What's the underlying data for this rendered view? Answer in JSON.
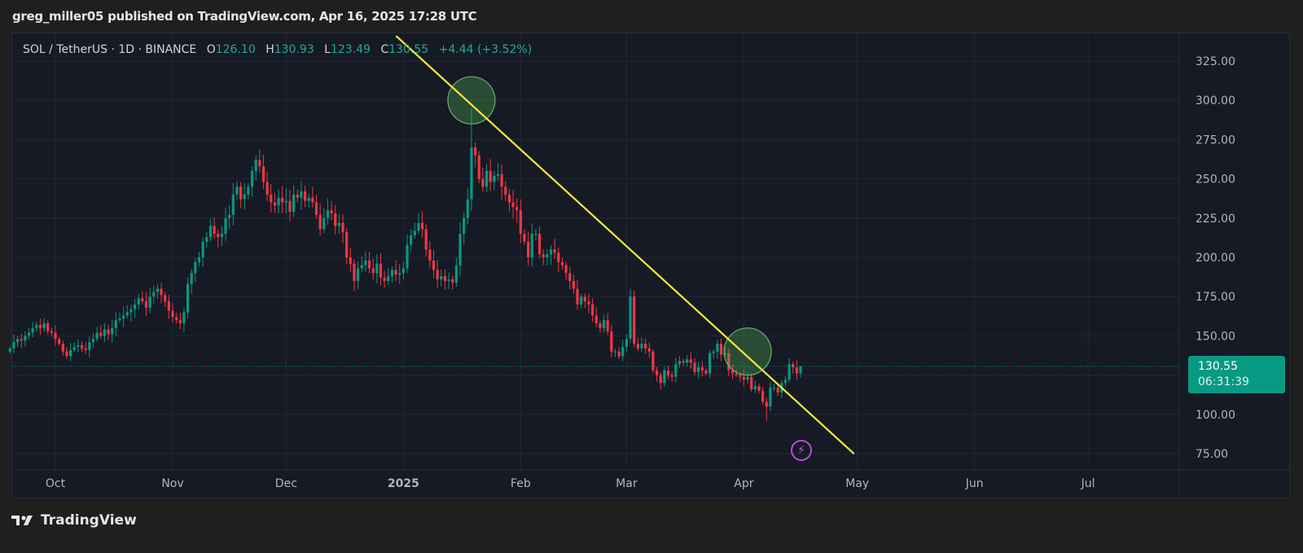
{
  "header": {
    "published": "greg_miller05 published on TradingView.com, Apr 16, 2025 17:28 UTC"
  },
  "legend": {
    "symbol": "SOL / TetherUS · 1D · BINANCE",
    "o_label": "O",
    "o": "126.10",
    "h_label": "H",
    "h": "130.93",
    "l_label": "L",
    "l": "123.49",
    "c_label": "C",
    "c": "130.55",
    "change": "+4.44 (+3.52%)"
  },
  "price_tag": {
    "price": "130.55",
    "countdown": "06:31:39"
  },
  "footer": {
    "brand": "TradingView"
  },
  "colors": {
    "up": "#089981",
    "down": "#f23645",
    "trendline": "#f5e93a",
    "highlight": "#4caf50",
    "background": "#161a25"
  },
  "icons": {
    "alert": "lightning-bolt-icon",
    "logo": "tradingview-logo-icon"
  },
  "chart_data": {
    "type": "candlestick",
    "title": "SOL / TetherUS · 1D · BINANCE",
    "start_date": "2024-09-19",
    "interval": "1D",
    "closes": [
      142,
      146,
      148,
      147,
      150,
      152,
      155,
      157,
      155,
      158,
      153,
      152,
      148,
      145,
      140,
      137,
      141,
      143,
      144,
      142,
      141,
      146,
      148,
      152,
      150,
      154,
      151,
      155,
      160,
      161,
      163,
      165,
      167,
      170,
      174,
      172,
      168,
      175,
      178,
      180,
      176,
      172,
      166,
      162,
      160,
      158,
      165,
      183,
      190,
      197,
      200,
      210,
      213,
      220,
      215,
      213,
      215,
      225,
      227,
      240,
      245,
      237,
      240,
      245,
      255,
      262,
      258,
      248,
      240,
      235,
      233,
      238,
      235,
      236,
      229,
      240,
      238,
      242,
      236,
      238,
      235,
      227,
      218,
      225,
      230,
      228,
      220,
      222,
      216,
      200,
      196,
      185,
      193,
      195,
      198,
      193,
      190,
      196,
      187,
      185,
      188,
      192,
      189,
      190,
      193,
      208,
      214,
      217,
      222,
      218,
      205,
      198,
      192,
      186,
      188,
      185,
      186,
      184,
      195,
      215,
      225,
      237,
      270,
      265,
      250,
      245,
      255,
      248,
      252,
      253,
      245,
      240,
      235,
      232,
      230,
      215,
      210,
      200,
      215,
      215,
      202,
      200,
      202,
      205,
      203,
      197,
      195,
      190,
      185,
      180,
      170,
      175,
      172,
      170,
      163,
      158,
      155,
      160,
      153,
      140,
      140,
      137,
      143,
      148,
      175,
      145,
      142,
      145,
      142,
      140,
      128,
      125,
      120,
      128,
      125,
      124,
      132,
      134,
      133,
      135,
      133,
      127,
      130,
      128,
      126,
      139,
      140,
      145,
      138,
      139,
      128,
      126,
      125,
      124,
      122,
      124,
      116,
      118,
      115,
      108,
      105,
      117,
      117,
      114,
      120,
      122,
      132,
      130,
      126,
      130.55
    ],
    "notable_wicks": [
      {
        "date": "2025-01-19",
        "high": 295
      },
      {
        "date": "2025-03-02",
        "high": 180
      },
      {
        "date": "2025-04-07",
        "low": 96
      },
      {
        "date": "2025-04-16",
        "open": 126.1,
        "high": 130.93,
        "low": 123.49
      }
    ],
    "y_ticks": [
      "325.00",
      "300.00",
      "275.00",
      "250.00",
      "225.00",
      "200.00",
      "175.00",
      "150.00",
      "100.00",
      "75.00"
    ],
    "y_tick_values": [
      325,
      300,
      275,
      250,
      225,
      200,
      175,
      150,
      100,
      75
    ],
    "ylim": [
      72,
      335
    ],
    "x_ticks": [
      {
        "label": "Oct",
        "date": "2024-10-01"
      },
      {
        "label": "Nov",
        "date": "2024-11-01"
      },
      {
        "label": "Dec",
        "date": "2024-12-01"
      },
      {
        "label": "2025",
        "date": "2025-01-01",
        "bold": true
      },
      {
        "label": "Feb",
        "date": "2025-02-01"
      },
      {
        "label": "Mar",
        "date": "2025-03-01"
      },
      {
        "label": "Apr",
        "date": "2025-04-01"
      },
      {
        "label": "May",
        "date": "2025-05-01"
      },
      {
        "label": "Jun",
        "date": "2025-06-01"
      },
      {
        "label": "Jul",
        "date": "2025-07-01"
      }
    ],
    "last_price": 130.55,
    "trendline": {
      "from": {
        "date": "2025-01-01",
        "price": 340
      },
      "to": {
        "date": "2025-05-01",
        "price": 78
      }
    },
    "highlights": [
      {
        "date": "2025-01-19",
        "price": 300
      },
      {
        "date": "2025-04-02",
        "price": 140
      }
    ]
  }
}
